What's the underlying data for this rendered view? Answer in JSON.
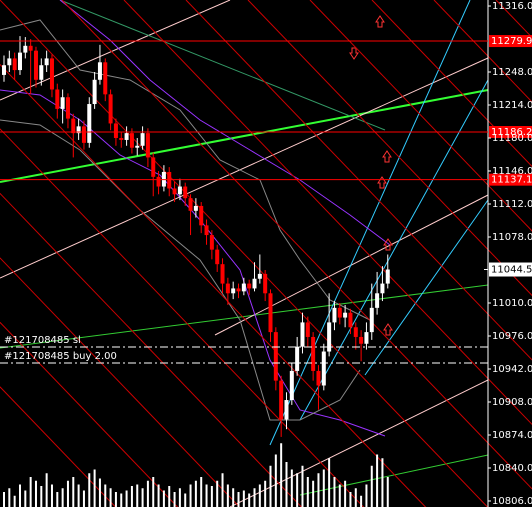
{
  "chart_data": {
    "type": "candlestick",
    "ylim": [
      10799.8,
      11322.2
    ],
    "yticks": [
      {
        "value": 11316,
        "label": "11316.0"
      },
      {
        "value": 11248,
        "label": "11248.0"
      },
      {
        "value": 11214,
        "label": "11214.0"
      },
      {
        "value": 11180,
        "label": "11180.0"
      },
      {
        "value": 11146,
        "label": "11146.0"
      },
      {
        "value": 11112,
        "label": "11112.0"
      },
      {
        "value": 11078,
        "label": "11078.0"
      },
      {
        "value": 11010,
        "label": "11010.0"
      },
      {
        "value": 10976,
        "label": "10976.0"
      },
      {
        "value": 10942,
        "label": "10942.0"
      },
      {
        "value": 10908,
        "label": "10908.0"
      },
      {
        "value": 10874,
        "label": "10874.0"
      },
      {
        "value": 10840,
        "label": "10840.0"
      },
      {
        "value": 10806,
        "label": "10806.0"
      }
    ],
    "up_color": "#ffffff",
    "down_color": "#ff0000",
    "open": [
      11245,
      11255,
      11262,
      11250,
      11268,
      11275,
      11270,
      11240,
      11255,
      11262,
      11230,
      11210,
      11222,
      11200,
      11185,
      11192,
      11175,
      11215,
      11240,
      11258,
      11225,
      11195,
      11180,
      11178,
      11185,
      11170,
      11172,
      11185,
      11160,
      11140,
      11130,
      11145,
      11128,
      11122,
      11130,
      11118,
      11105,
      11110,
      11090,
      11080,
      11065,
      11050,
      11030,
      11020,
      11025,
      11022,
      11030,
      11025,
      11035,
      11040,
      11020,
      10980,
      10930,
      10890,
      10910,
      10940,
      10965,
      10990,
      10975,
      10940,
      10925,
      10960,
      10990,
      11005,
      10995,
      11000,
      10985,
      10975,
      10968,
      10980,
      11005,
      11020,
      11030
    ],
    "high": [
      11265,
      11270,
      11268,
      11285,
      11284,
      11282,
      11274,
      11262,
      11270,
      11266,
      11236,
      11230,
      11226,
      11205,
      11200,
      11198,
      11222,
      11248,
      11276,
      11262,
      11230,
      11200,
      11186,
      11192,
      11190,
      11180,
      11192,
      11190,
      11165,
      11146,
      11152,
      11150,
      11135,
      11138,
      11134,
      11122,
      11118,
      11114,
      11096,
      11085,
      11070,
      11056,
      11036,
      11032,
      11030,
      11036,
      11034,
      11052,
      11060,
      11044,
      11024,
      10985,
      10935,
      10918,
      10948,
      10975,
      11000,
      10996,
      10980,
      10946,
      10968,
      11020,
      11012,
      11010,
      11008,
      11004,
      10990,
      10982,
      10990,
      11030,
      11042,
      11048,
      11060
    ],
    "low": [
      11238,
      11248,
      11240,
      11245,
      11262,
      11225,
      11232,
      11234,
      11248,
      11222,
      11200,
      11195,
      11190,
      11160,
      11178,
      11168,
      11170,
      11210,
      11235,
      11218,
      11188,
      11172,
      11170,
      11172,
      11164,
      11162,
      11168,
      11150,
      11120,
      11122,
      11125,
      11120,
      11114,
      11116,
      11110,
      11080,
      11098,
      11082,
      11070,
      11055,
      11042,
      11020,
      11008,
      11014,
      11015,
      11018,
      11018,
      11022,
      11030,
      11012,
      10970,
      10920,
      10872,
      10880,
      10905,
      10935,
      10958,
      10965,
      10930,
      10900,
      10920,
      10955,
      10982,
      10988,
      10985,
      10978,
      10962,
      10950,
      10962,
      10972,
      10998,
      11012,
      11025
    ],
    "close": [
      11255,
      11262,
      11250,
      11268,
      11275,
      11270,
      11240,
      11255,
      11262,
      11230,
      11210,
      11222,
      11200,
      11185,
      11192,
      11175,
      11215,
      11240,
      11258,
      11225,
      11195,
      11180,
      11178,
      11185,
      11170,
      11172,
      11185,
      11160,
      11140,
      11130,
      11145,
      11128,
      11122,
      11130,
      11118,
      11105,
      11110,
      11090,
      11080,
      11065,
      11050,
      11030,
      11020,
      11025,
      11022,
      11030,
      11025,
      11035,
      11040,
      11020,
      10980,
      10930,
      10890,
      10910,
      10940,
      10965,
      10990,
      10975,
      10940,
      10925,
      10960,
      10990,
      11005,
      10995,
      11000,
      10985,
      10975,
      10968,
      10980,
      11005,
      11020,
      11030,
      11044.5
    ],
    "volume": {
      "color": "#ffffff",
      "ylim": [
        0,
        100
      ],
      "values": [
        20,
        25,
        15,
        30,
        22,
        40,
        35,
        28,
        45,
        30,
        20,
        25,
        35,
        40,
        30,
        22,
        45,
        50,
        38,
        30,
        25,
        20,
        18,
        22,
        28,
        30,
        25,
        35,
        40,
        30,
        22,
        28,
        20,
        25,
        18,
        30,
        35,
        40,
        30,
        28,
        35,
        45,
        30,
        25,
        20,
        22,
        18,
        25,
        30,
        35,
        55,
        70,
        85,
        60,
        50,
        45,
        55,
        40,
        35,
        45,
        50,
        65,
        40,
        30,
        35,
        20,
        25,
        15,
        30,
        55,
        70,
        65,
        40
      ]
    },
    "levels": [
      {
        "value": 11279.9,
        "color": "#ff0000"
      },
      {
        "value": 11186.2,
        "color": "#ff0000"
      },
      {
        "value": 11137.1,
        "color": "#ff0000"
      }
    ],
    "orders": [
      {
        "label": "#121708485 sl",
        "value": 10964.7
      },
      {
        "label": "#121708485 buy 2.00",
        "value": 10948.2
      }
    ],
    "last_price": 11044.5
  }
}
